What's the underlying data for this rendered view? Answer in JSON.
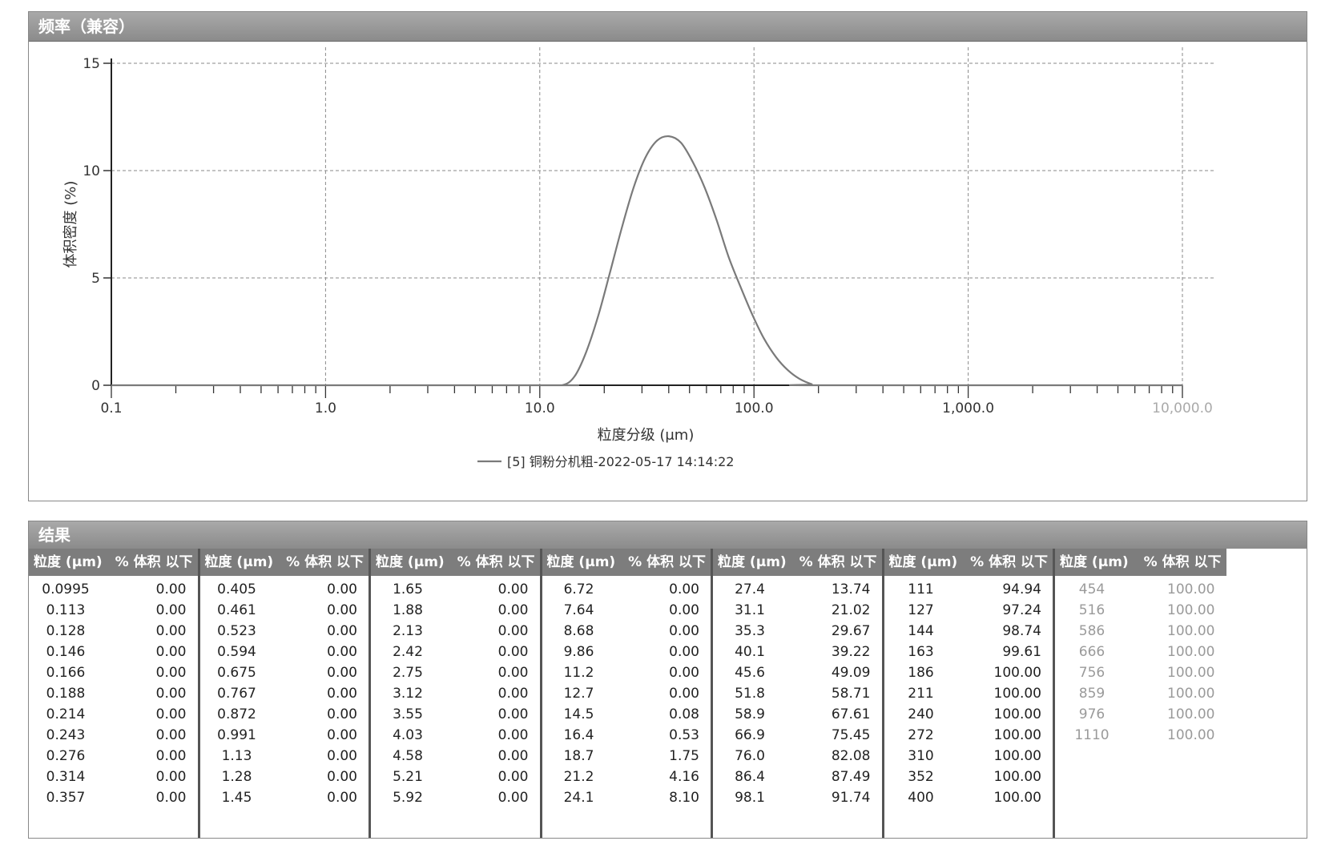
{
  "chart_panel": {
    "title": "频率（兼容）"
  },
  "chart_data": {
    "type": "line",
    "title": "",
    "xlabel": "粒度分级 (μm)",
    "ylabel": "体积密度 (%)",
    "xscale": "log",
    "xlim": [
      0.1,
      10000
    ],
    "ylim": [
      0,
      15
    ],
    "grid": true,
    "x_tick_labels": [
      "0.1",
      "1.0",
      "10.0",
      "100.0",
      "1,000.0",
      "10,000.0"
    ],
    "y_tick_labels": [
      "0",
      "5",
      "10",
      "15"
    ],
    "legend": "[5] 铜粉分机粗-2022-05-17 14:14:22",
    "legend_position": "bottom",
    "series": [
      {
        "name": "[5] 铜粉分机粗-2022-05-17 14:14:22",
        "x": [
          0.1,
          10,
          12.7,
          14.5,
          16.4,
          18.7,
          21.2,
          24.1,
          27.4,
          31.1,
          35.3,
          40.1,
          45.6,
          51.8,
          58.9,
          66.9,
          76.0,
          86.4,
          98.1,
          111,
          127,
          144,
          163,
          186,
          200,
          10000
        ],
        "y": [
          0,
          0,
          0,
          0.4,
          1.5,
          3.2,
          5.2,
          7.3,
          9.2,
          10.6,
          11.4,
          11.6,
          11.3,
          10.4,
          9.2,
          7.7,
          6.0,
          4.6,
          3.3,
          2.2,
          1.3,
          0.7,
          0.3,
          0.05,
          0,
          0
        ]
      }
    ]
  },
  "results": {
    "title": "结果",
    "header_size": "粒度 (μm)",
    "header_pct": "% 体积 以下",
    "columns": [
      {
        "rows": [
          [
            "0.0995",
            "0.00"
          ],
          [
            "0.113",
            "0.00"
          ],
          [
            "0.128",
            "0.00"
          ],
          [
            "0.146",
            "0.00"
          ],
          [
            "0.166",
            "0.00"
          ],
          [
            "0.188",
            "0.00"
          ],
          [
            "0.214",
            "0.00"
          ],
          [
            "0.243",
            "0.00"
          ],
          [
            "0.276",
            "0.00"
          ],
          [
            "0.314",
            "0.00"
          ],
          [
            "0.357",
            "0.00"
          ]
        ]
      },
      {
        "rows": [
          [
            "0.405",
            "0.00"
          ],
          [
            "0.461",
            "0.00"
          ],
          [
            "0.523",
            "0.00"
          ],
          [
            "0.594",
            "0.00"
          ],
          [
            "0.675",
            "0.00"
          ],
          [
            "0.767",
            "0.00"
          ],
          [
            "0.872",
            "0.00"
          ],
          [
            "0.991",
            "0.00"
          ],
          [
            "1.13",
            "0.00"
          ],
          [
            "1.28",
            "0.00"
          ],
          [
            "1.45",
            "0.00"
          ]
        ]
      },
      {
        "rows": [
          [
            "1.65",
            "0.00"
          ],
          [
            "1.88",
            "0.00"
          ],
          [
            "2.13",
            "0.00"
          ],
          [
            "2.42",
            "0.00"
          ],
          [
            "2.75",
            "0.00"
          ],
          [
            "3.12",
            "0.00"
          ],
          [
            "3.55",
            "0.00"
          ],
          [
            "4.03",
            "0.00"
          ],
          [
            "4.58",
            "0.00"
          ],
          [
            "5.21",
            "0.00"
          ],
          [
            "5.92",
            "0.00"
          ]
        ]
      },
      {
        "rows": [
          [
            "6.72",
            "0.00"
          ],
          [
            "7.64",
            "0.00"
          ],
          [
            "8.68",
            "0.00"
          ],
          [
            "9.86",
            "0.00"
          ],
          [
            "11.2",
            "0.00"
          ],
          [
            "12.7",
            "0.00"
          ],
          [
            "14.5",
            "0.08"
          ],
          [
            "16.4",
            "0.53"
          ],
          [
            "18.7",
            "1.75"
          ],
          [
            "21.2",
            "4.16"
          ],
          [
            "24.1",
            "8.10"
          ]
        ]
      },
      {
        "rows": [
          [
            "27.4",
            "13.74"
          ],
          [
            "31.1",
            "21.02"
          ],
          [
            "35.3",
            "29.67"
          ],
          [
            "40.1",
            "39.22"
          ],
          [
            "45.6",
            "49.09"
          ],
          [
            "51.8",
            "58.71"
          ],
          [
            "58.9",
            "67.61"
          ],
          [
            "66.9",
            "75.45"
          ],
          [
            "76.0",
            "82.08"
          ],
          [
            "86.4",
            "87.49"
          ],
          [
            "98.1",
            "91.74"
          ]
        ]
      },
      {
        "rows": [
          [
            "111",
            "94.94"
          ],
          [
            "127",
            "97.24"
          ],
          [
            "144",
            "98.74"
          ],
          [
            "163",
            "99.61"
          ],
          [
            "186",
            "100.00"
          ],
          [
            "211",
            "100.00"
          ],
          [
            "240",
            "100.00"
          ],
          [
            "272",
            "100.00"
          ],
          [
            "310",
            "100.00"
          ],
          [
            "352",
            "100.00"
          ],
          [
            "400",
            "100.00"
          ]
        ]
      },
      {
        "faded": true,
        "rows": [
          [
            "454",
            "100.00"
          ],
          [
            "516",
            "100.00"
          ],
          [
            "586",
            "100.00"
          ],
          [
            "666",
            "100.00"
          ],
          [
            "756",
            "100.00"
          ],
          [
            "859",
            "100.00"
          ],
          [
            "976",
            "100.00"
          ],
          [
            "1110",
            "100.00"
          ]
        ]
      }
    ]
  }
}
